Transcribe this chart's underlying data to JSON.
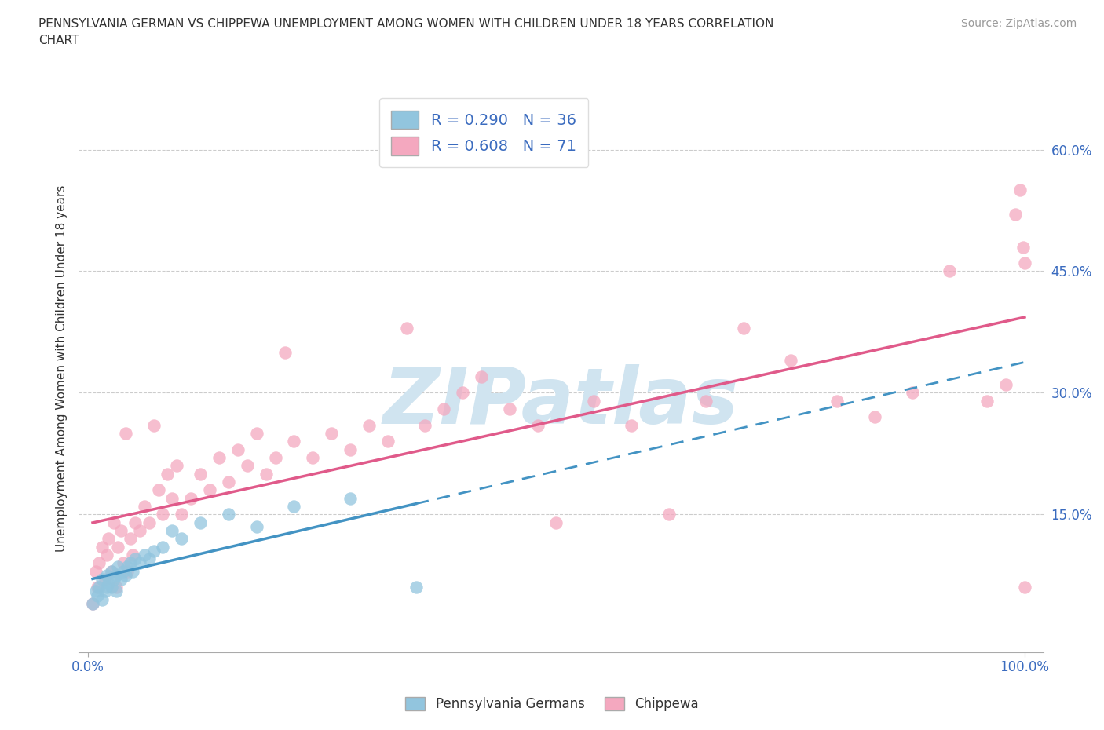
{
  "title": "PENNSYLVANIA GERMAN VS CHIPPEWA UNEMPLOYMENT AMONG WOMEN WITH CHILDREN UNDER 18 YEARS CORRELATION\nCHART",
  "source": "Source: ZipAtlas.com",
  "ylabel": "Unemployment Among Women with Children Under 18 years",
  "ytick_labels": [
    "15.0%",
    "30.0%",
    "45.0%",
    "60.0%"
  ],
  "ytick_values": [
    0.15,
    0.3,
    0.45,
    0.6
  ],
  "xlim": [
    -0.01,
    1.02
  ],
  "ylim": [
    -0.02,
    0.68
  ],
  "legend_r1": "R = 0.290   N = 36",
  "legend_r2": "R = 0.608   N = 71",
  "color_blue": "#92c5de",
  "color_pink": "#f4a8bf",
  "color_blue_line": "#4393c3",
  "color_pink_line": "#e05a8a",
  "watermark_text": "ZIPatlas",
  "watermark_color": "#d0e4f0",
  "group1_label": "Pennsylvania Germans",
  "group2_label": "Chippewa",
  "pa_x": [
    0.005,
    0.008,
    0.01,
    0.012,
    0.015,
    0.015,
    0.018,
    0.02,
    0.02,
    0.022,
    0.025,
    0.025,
    0.028,
    0.03,
    0.03,
    0.032,
    0.035,
    0.038,
    0.04,
    0.042,
    0.045,
    0.048,
    0.05,
    0.055,
    0.06,
    0.065,
    0.07,
    0.08,
    0.09,
    0.1,
    0.12,
    0.15,
    0.18,
    0.22,
    0.28,
    0.35
  ],
  "pa_y": [
    0.04,
    0.055,
    0.05,
    0.06,
    0.045,
    0.07,
    0.055,
    0.06,
    0.075,
    0.065,
    0.06,
    0.08,
    0.07,
    0.055,
    0.075,
    0.085,
    0.07,
    0.08,
    0.075,
    0.085,
    0.09,
    0.08,
    0.095,
    0.09,
    0.1,
    0.095,
    0.105,
    0.11,
    0.13,
    0.12,
    0.14,
    0.15,
    0.135,
    0.16,
    0.17,
    0.06
  ],
  "ch_x": [
    0.005,
    0.008,
    0.01,
    0.012,
    0.015,
    0.018,
    0.02,
    0.022,
    0.025,
    0.028,
    0.03,
    0.032,
    0.035,
    0.038,
    0.04,
    0.042,
    0.045,
    0.048,
    0.05,
    0.055,
    0.06,
    0.065,
    0.07,
    0.075,
    0.08,
    0.085,
    0.09,
    0.095,
    0.1,
    0.11,
    0.12,
    0.13,
    0.14,
    0.15,
    0.16,
    0.17,
    0.18,
    0.19,
    0.2,
    0.21,
    0.22,
    0.24,
    0.26,
    0.28,
    0.3,
    0.32,
    0.34,
    0.36,
    0.38,
    0.4,
    0.42,
    0.45,
    0.48,
    0.5,
    0.54,
    0.58,
    0.62,
    0.66,
    0.7,
    0.75,
    0.8,
    0.84,
    0.88,
    0.92,
    0.96,
    0.98,
    0.99,
    0.995,
    0.998,
    1.0,
    1.0
  ],
  "ch_y": [
    0.04,
    0.08,
    0.06,
    0.09,
    0.11,
    0.07,
    0.1,
    0.12,
    0.08,
    0.14,
    0.06,
    0.11,
    0.13,
    0.09,
    0.25,
    0.08,
    0.12,
    0.1,
    0.14,
    0.13,
    0.16,
    0.14,
    0.26,
    0.18,
    0.15,
    0.2,
    0.17,
    0.21,
    0.15,
    0.17,
    0.2,
    0.18,
    0.22,
    0.19,
    0.23,
    0.21,
    0.25,
    0.2,
    0.22,
    0.35,
    0.24,
    0.22,
    0.25,
    0.23,
    0.26,
    0.24,
    0.38,
    0.26,
    0.28,
    0.3,
    0.32,
    0.28,
    0.26,
    0.14,
    0.29,
    0.26,
    0.15,
    0.29,
    0.38,
    0.34,
    0.29,
    0.27,
    0.3,
    0.45,
    0.29,
    0.31,
    0.52,
    0.55,
    0.48,
    0.46,
    0.06
  ]
}
